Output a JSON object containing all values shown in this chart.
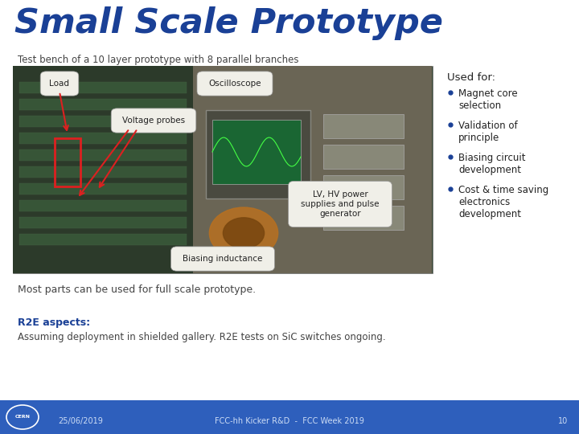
{
  "title": "Small Scale Prototype",
  "subtitle": "Test bench of a 10 layer prototype with 8 parallel branches",
  "title_color": "#1a4096",
  "subtitle_color": "#444444",
  "bg_color": "#ffffff",
  "footer_bg_color": "#2e5fbc",
  "footer_text_color": "#ccdcf5",
  "footer_date": "25/06/2019",
  "footer_center": "FCC-hh Kicker R&D  -  FCC Week 2019",
  "footer_page": "10",
  "used_for_title": "Used for:",
  "bullet_points": [
    "Magnet core\nselection",
    "Validation of\nprinciple",
    "Biasing circuit\ndevelopment",
    "Cost & time saving\nelectronics\ndevelopment"
  ],
  "note_text": "Most parts can be used for full scale prototype.",
  "r2e_bold": "R2E aspects:",
  "r2e_text": "Assuming deployment in shielded gallery. R2E tests on SiC switches ongoing.",
  "label_load": "Load",
  "label_oscilloscope": "Oscilloscope",
  "label_voltage": "Voltage probes",
  "label_lv_hv": "LV, HV power\nsupplies and pulse\ngenerator",
  "label_biasing": "Biasing inductance",
  "label_text_color": "#222222",
  "bullet_color": "#1a4096",
  "photo_left_color": "#3a4835",
  "photo_right_color": "#6a6850",
  "photo_mid_color": "#555545"
}
